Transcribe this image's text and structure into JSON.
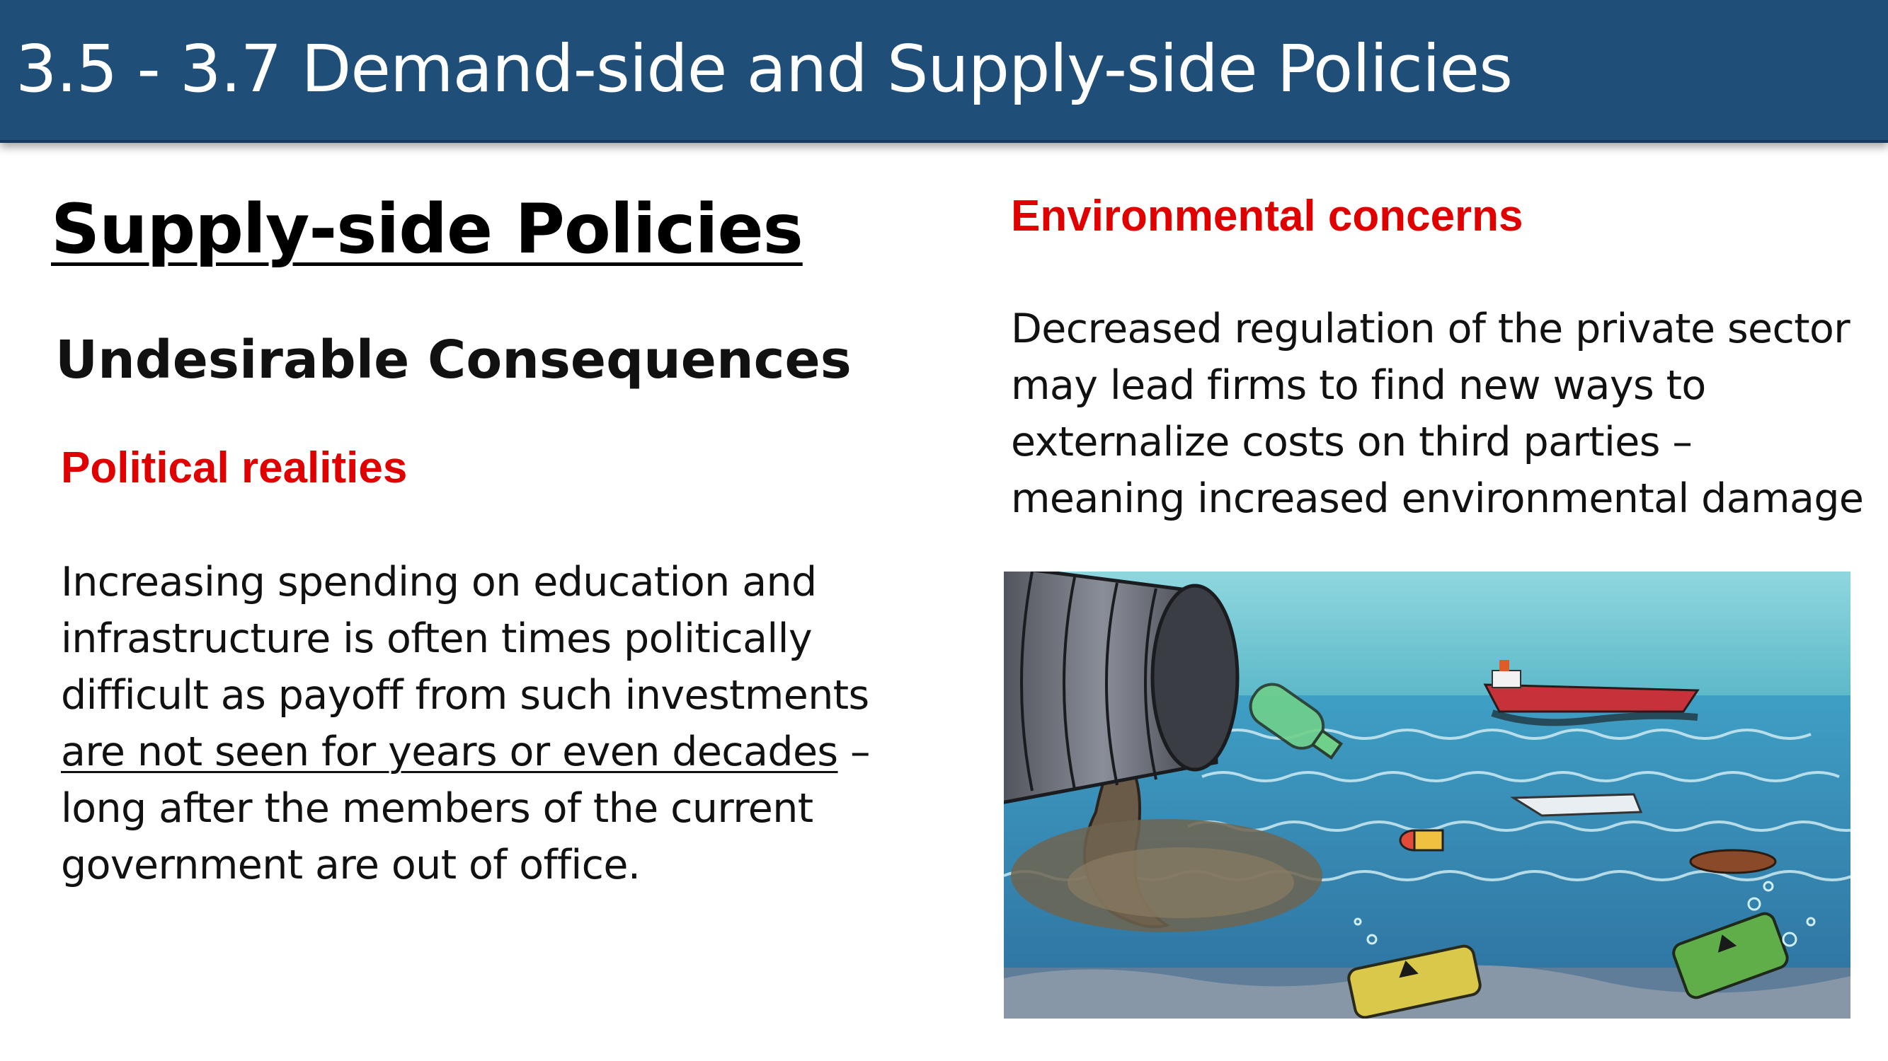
{
  "header": {
    "title": "3.5 - 3.7 Demand-side and Supply-side Policies"
  },
  "slide": {
    "heading": "Supply-side Policies",
    "subheading": "Undesirable Consequences",
    "left": {
      "title": "Political realities",
      "lines": [
        "Increasing spending on education and",
        "infrastructure is often times politically",
        "difficult as payoff from such investments",
        "are not seen for years or even decades",
        "long after the members of the current",
        "government are out of office."
      ],
      "dash": " –"
    },
    "right": {
      "title": "Environmental concerns",
      "lines": [
        "Decreased regulation of the private sector",
        "may lead firms to find new ways to",
        "externalize costs on third parties –",
        "meaning increased environmental damage"
      ]
    }
  },
  "colors": {
    "title_bar": "#1f4e79",
    "accent_red": "#e00000"
  }
}
